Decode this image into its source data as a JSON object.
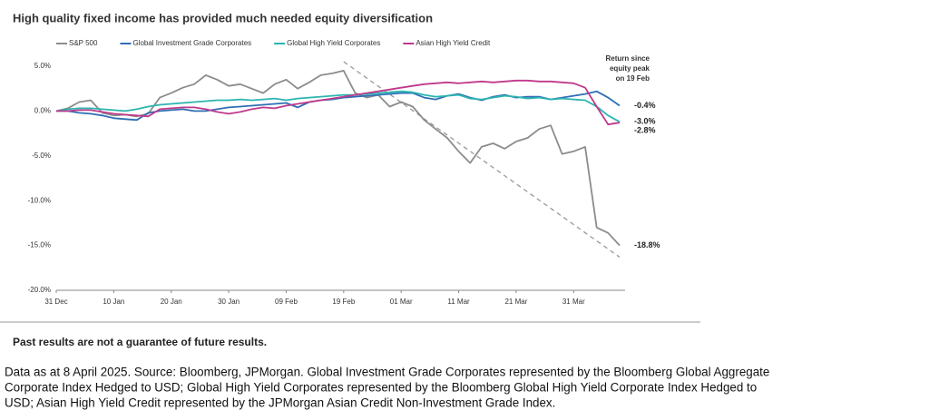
{
  "chart_data": {
    "type": "line",
    "title": "High quality fixed income has provided much needed equity diversification",
    "x": [
      0,
      2,
      4,
      6,
      8,
      10,
      12,
      14,
      16,
      18,
      20,
      22,
      24,
      26,
      28,
      30,
      32,
      34,
      36,
      38,
      40,
      42,
      44,
      46,
      48,
      50,
      52,
      54,
      56,
      58,
      60,
      62,
      64,
      66,
      68,
      70,
      72,
      74,
      76,
      78,
      80,
      82,
      84,
      86,
      88,
      90,
      92,
      94,
      96,
      98
    ],
    "series": [
      {
        "name": "S&P 500",
        "color": "#8c8c8c",
        "end_label": "-18.8%",
        "values": [
          0,
          0.3,
          1.0,
          1.2,
          -0.2,
          -0.5,
          -0.4,
          -0.6,
          -0.3,
          1.5,
          2.0,
          2.6,
          3.0,
          4.0,
          3.5,
          2.8,
          3.0,
          2.5,
          2.0,
          3.0,
          3.5,
          2.5,
          3.2,
          4.0,
          4.2,
          4.5,
          2.0,
          1.5,
          1.8,
          0.5,
          1.0,
          0.5,
          -1.0,
          -2.0,
          -3.0,
          -4.5,
          -5.8,
          -4.0,
          -3.6,
          -4.2,
          -3.4,
          -3.0,
          -2.0,
          -1.6,
          -4.8,
          -4.5,
          -4.0,
          -13.0,
          -13.6,
          -15.0
        ]
      },
      {
        "name": "Global Investment Grade Corporates",
        "color": "#2f6fb5",
        "end_label": "-0.4%",
        "values": [
          0,
          0,
          -0.2,
          -0.3,
          -0.5,
          -0.8,
          -0.9,
          -1.0,
          -0.2,
          0,
          0.1,
          0.2,
          0,
          0,
          0.2,
          0.4,
          0.5,
          0.6,
          0.7,
          0.8,
          0.9,
          0.4,
          1.0,
          1.2,
          1.3,
          1.5,
          1.6,
          1.7,
          1.8,
          1.9,
          2.0,
          2.0,
          1.5,
          1.3,
          1.7,
          1.9,
          1.5,
          1.2,
          1.6,
          1.8,
          1.5,
          1.6,
          1.6,
          1.3,
          1.5,
          1.7,
          1.9,
          2.2,
          1.5,
          0.6
        ]
      },
      {
        "name": "Global High Yield Corporates",
        "color": "#2bb5b0",
        "end_label": "-3.0%",
        "values": [
          0,
          0.2,
          0.3,
          0.3,
          0.2,
          0.1,
          0,
          0.2,
          0.5,
          0.7,
          0.8,
          0.9,
          1.0,
          1.1,
          1.2,
          1.2,
          1.3,
          1.2,
          1.3,
          1.4,
          1.2,
          1.4,
          1.5,
          1.6,
          1.7,
          1.8,
          1.8,
          1.9,
          2.0,
          2.1,
          2.2,
          2.1,
          1.8,
          1.6,
          1.7,
          1.8,
          1.4,
          1.3,
          1.5,
          1.7,
          1.6,
          1.4,
          1.5,
          1.3,
          1.4,
          1.3,
          1.2,
          0.5,
          -0.5,
          -1.2
        ]
      },
      {
        "name": "Asian High Yield Credit",
        "color": "#c0398b",
        "end_label": "-2.8%",
        "values": [
          0,
          0,
          0.1,
          0.1,
          -0.1,
          -0.3,
          -0.4,
          -0.5,
          -0.6,
          0.2,
          0.3,
          0.4,
          0.4,
          0.2,
          -0.1,
          -0.3,
          -0.1,
          0.2,
          0.4,
          0.3,
          0.6,
          0.8,
          1.0,
          1.2,
          1.4,
          1.6,
          1.8,
          2.0,
          2.2,
          2.4,
          2.6,
          2.8,
          3.0,
          3.1,
          3.2,
          3.1,
          3.2,
          3.3,
          3.2,
          3.3,
          3.4,
          3.4,
          3.3,
          3.3,
          3.2,
          3.1,
          2.6,
          0.5,
          -1.5,
          -1.3
        ]
      }
    ],
    "trend_line": {
      "x": [
        50,
        98
      ],
      "y": [
        5.5,
        -16.3
      ],
      "color": "#999999"
    },
    "annotation": [
      "Return since",
      "equity peak",
      "on 19 Feb"
    ],
    "xlim": [
      0,
      98
    ],
    "xticks": [
      {
        "value": 0,
        "label": "31 Dec"
      },
      {
        "value": 10,
        "label": "10 Jan"
      },
      {
        "value": 20,
        "label": "20 Jan"
      },
      {
        "value": 30,
        "label": "30 Jan"
      },
      {
        "value": 40,
        "label": "09 Feb"
      },
      {
        "value": 50,
        "label": "19 Feb"
      },
      {
        "value": 60,
        "label": "01 Mar"
      },
      {
        "value": 70,
        "label": "11 Mar"
      },
      {
        "value": 80,
        "label": "21 Mar"
      },
      {
        "value": 90,
        "label": "31 Mar"
      }
    ],
    "ylim": [
      -20,
      5
    ],
    "yticks": [
      {
        "value": 5,
        "label": "5.0%"
      },
      {
        "value": 0,
        "label": "0.0%"
      },
      {
        "value": -5,
        "label": "-5.0%"
      },
      {
        "value": -10,
        "label": "-10.0%"
      },
      {
        "value": -15,
        "label": "-15.0%"
      },
      {
        "value": -20,
        "label": "-20.0%"
      }
    ],
    "grid": false
  },
  "disclaimer": "Past results are not a guarantee of future results.",
  "footnote": [
    "Data as at 8 April 2025. Source: Bloomberg, JPMorgan. Global Investment Grade Corporates represented by the Bloomberg Global Aggregate",
    "Corporate Index Hedged to USD; Global High Yield Corporates represented by the Bloomberg Global High Yield Corporate Index Hedged to",
    "USD; Asian High Yield Credit represented by the JPMorgan Asian Credit Non-Investment Grade Index."
  ]
}
